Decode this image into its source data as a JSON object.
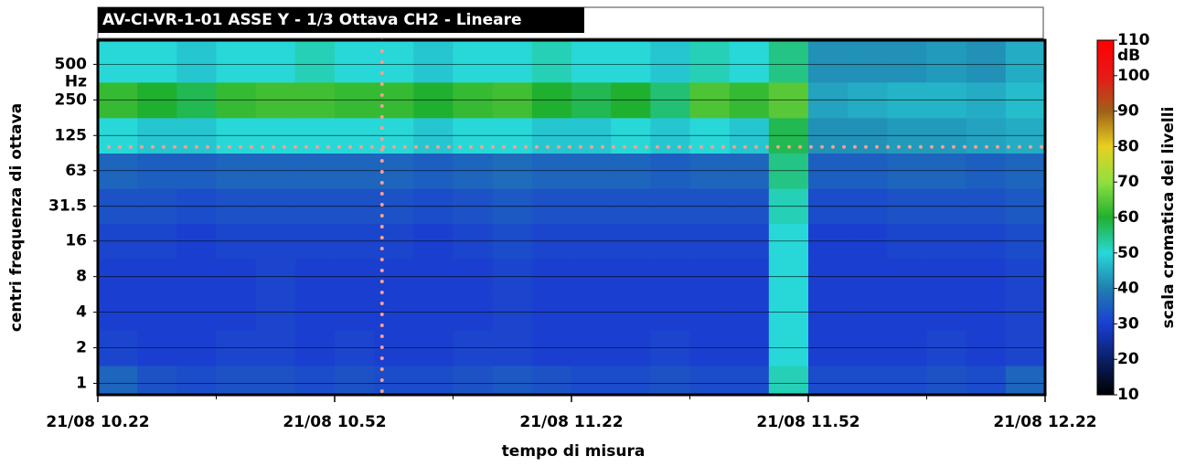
{
  "chart_data": {
    "type": "heatmap",
    "title": "AV-CI-VR-1-01 ASSE Y - 1/3 Ottava CH2 - Lineare",
    "xlabel": "tempo di misura",
    "ylabel": "centri frequenza di ottava",
    "y_unit": "Hz",
    "ylog": true,
    "ylim": [
      0.8,
      800
    ],
    "yticks": [
      1,
      2,
      4,
      8,
      16,
      31.5,
      63,
      125,
      250,
      500
    ],
    "grid": true,
    "xlim": [
      622,
      742
    ],
    "xticks": [
      {
        "value": 622,
        "label": "21/08 10.22"
      },
      {
        "value": 652,
        "label": "21/08 10.52"
      },
      {
        "value": 682,
        "label": "21/08 11.22"
      },
      {
        "value": 712,
        "label": "21/08 11.52"
      },
      {
        "value": 742,
        "label": "21/08 12.22"
      }
    ],
    "xminorticks": [
      637,
      667,
      697,
      727
    ],
    "y": [
      1,
      2,
      4,
      8,
      16,
      31.5,
      63,
      125,
      250,
      500
    ],
    "z": [
      [
        36,
        33,
        32,
        33,
        33,
        32,
        33,
        32,
        32,
        33,
        34,
        33,
        32,
        32,
        33,
        32,
        32,
        52,
        32,
        32,
        32,
        33,
        32,
        36
      ],
      [
        31,
        30,
        30,
        31,
        31,
        30,
        31,
        30,
        30,
        31,
        31,
        30,
        30,
        30,
        31,
        30,
        30,
        50,
        30,
        30,
        30,
        31,
        30,
        31
      ],
      [
        30,
        30,
        30,
        30,
        31,
        30,
        30,
        30,
        30,
        30,
        31,
        30,
        30,
        30,
        30,
        30,
        30,
        50,
        30,
        30,
        30,
        30,
        30,
        31
      ],
      [
        30,
        30,
        30,
        30,
        31,
        30,
        30,
        30,
        30,
        30,
        31,
        30,
        30,
        30,
        30,
        30,
        30,
        50,
        30,
        30,
        30,
        30,
        30,
        31
      ],
      [
        31,
        31,
        30,
        31,
        31,
        31,
        31,
        31,
        30,
        31,
        32,
        31,
        31,
        31,
        31,
        31,
        31,
        50,
        30,
        30,
        31,
        31,
        31,
        32
      ],
      [
        33,
        33,
        32,
        33,
        33,
        33,
        33,
        33,
        32,
        33,
        34,
        33,
        33,
        33,
        33,
        33,
        33,
        52,
        32,
        32,
        33,
        33,
        33,
        34
      ],
      [
        36,
        35,
        35,
        36,
        36,
        36,
        36,
        36,
        35,
        36,
        37,
        36,
        36,
        36,
        35,
        36,
        36,
        55,
        35,
        35,
        36,
        36,
        35,
        36
      ],
      [
        50,
        48,
        48,
        50,
        50,
        50,
        50,
        50,
        48,
        50,
        50,
        48,
        48,
        50,
        48,
        50,
        48,
        58,
        42,
        42,
        43,
        43,
        44,
        45
      ],
      [
        62,
        60,
        58,
        62,
        63,
        63,
        62,
        62,
        60,
        62,
        63,
        60,
        58,
        60,
        56,
        64,
        62,
        65,
        44,
        45,
        46,
        46,
        45,
        47
      ],
      [
        50,
        50,
        48,
        50,
        50,
        52,
        50,
        50,
        48,
        50,
        50,
        52,
        50,
        50,
        48,
        52,
        50,
        55,
        42,
        42,
        42,
        43,
        42,
        45
      ]
    ],
    "cursor": {
      "x": 658,
      "y": 100,
      "color": "#f4a090"
    },
    "clim": [
      10,
      110
    ],
    "cticks": [
      10,
      20,
      30,
      40,
      50,
      60,
      70,
      80,
      90,
      100,
      110
    ],
    "colorbar_unit": "dB",
    "colorbar_label": "scala cromatica dei livelli",
    "colorscale": [
      "#000000",
      "#0a1f66",
      "#1a3fd0",
      "#1f7fb0",
      "#28d8d8",
      "#20b030",
      "#90e040",
      "#e8d020",
      "#a06018",
      "#e81818",
      "#ff0000"
    ]
  }
}
